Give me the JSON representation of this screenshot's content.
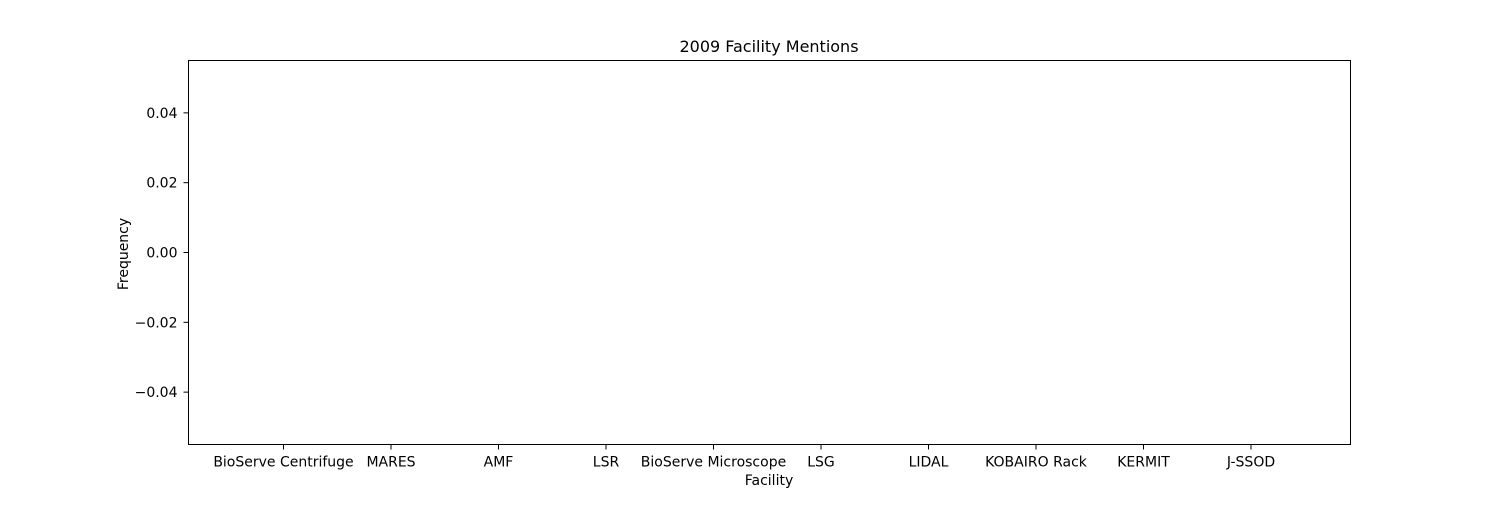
{
  "chart_data": {
    "type": "bar",
    "title": "2009 Facility Mentions",
    "xlabel": "Facility",
    "ylabel": "Frequency",
    "categories": [
      "BioServe Centrifuge",
      "MARES",
      "AMF",
      "LSR",
      "BioServe Microscope",
      "LSG",
      "LIDAL",
      "KOBAIRO Rack",
      "KERMIT",
      "J-SSOD"
    ],
    "values": [
      0,
      0,
      0,
      0,
      0,
      0,
      0,
      0,
      0,
      0
    ],
    "ylim": [
      -0.055,
      0.055
    ],
    "yticks": [
      0.04,
      0.02,
      0.0,
      -0.02,
      -0.04
    ],
    "ytick_labels": [
      "0.04",
      "0.02",
      "0.00",
      "−0.02",
      "−0.04"
    ],
    "grid": false,
    "bar_color": "#1f77b4"
  }
}
